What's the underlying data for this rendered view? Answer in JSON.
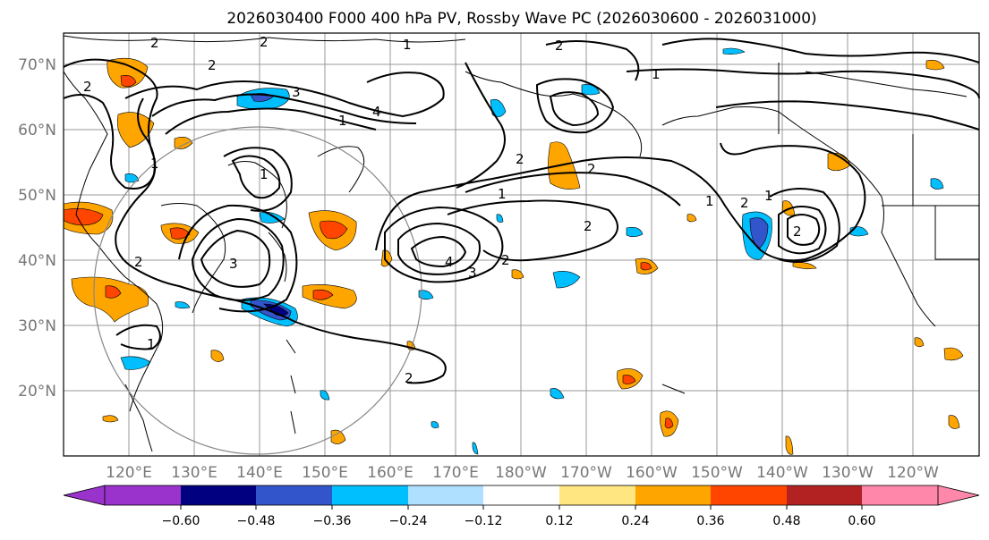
{
  "title": "2026030400 F000 400 hPa PV, Rossby Wave PC (2026030600 - 2026031000)",
  "lat_labels": [
    "70°N",
    "60°N",
    "50°N",
    "40°N",
    "30°N",
    "20°N"
  ],
  "lon_labels": [
    "120°E",
    "130°E",
    "140°E",
    "150°E",
    "160°E",
    "170°E",
    "180°W",
    "170°W",
    "160°W",
    "150°W",
    "140°W",
    "130°W",
    "120°W"
  ],
  "colorbar": {
    "ticks": [
      "−0.60",
      "−0.48",
      "−0.36",
      "−0.24",
      "−0.12",
      "0.12",
      "0.24",
      "0.36",
      "0.48",
      "0.60"
    ],
    "colors": [
      "#9933cc",
      "#000080",
      "#3355cc",
      "#00bfff",
      "#b0e0ff",
      "#ffffff",
      "#ffe680",
      "#ffa500",
      "#ff4500",
      "#b22222",
      "#ff88aa"
    ]
  },
  "contour_labels": [
    "2",
    "2",
    "2",
    "1",
    "2",
    "2",
    "1",
    "3",
    "4",
    "1",
    "2",
    "2",
    "1",
    "1",
    "2",
    "4",
    "3",
    "2",
    "1",
    "2",
    "3",
    "1",
    "2",
    "2",
    "1",
    "2",
    "1"
  ],
  "colors": {
    "frame": "#000000",
    "grid": "#999999",
    "land": "#000000",
    "contour": "#000000",
    "circle": "#888888"
  }
}
